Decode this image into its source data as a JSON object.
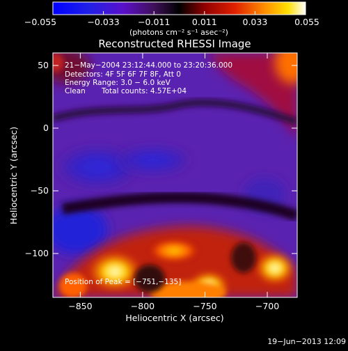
{
  "chart_data": {
    "type": "heatmap",
    "title": "Reconstructed RHESSI Image",
    "xlabel": "Heliocentric X (arcsec)",
    "ylabel": "Heliocentric Y (arcsec)",
    "xlim": [
      -872,
      -676
    ],
    "ylim": [
      -135,
      60
    ],
    "x_ticks": [
      "−850",
      "−800",
      "−750",
      "−700"
    ],
    "x_tick_values": [
      -850,
      -800,
      -750,
      -700
    ],
    "y_ticks": [
      "50",
      "0",
      "−50",
      "−100"
    ],
    "y_tick_values": [
      50,
      0,
      -50,
      -100
    ],
    "colorbar": {
      "range": [
        -0.055,
        0.055
      ],
      "ticks": [
        "−0.055",
        "−0.033",
        "−0.011",
        "0.011",
        "0.033",
        "0.055"
      ],
      "tick_values": [
        -0.055,
        -0.033,
        -0.011,
        0.011,
        0.033,
        0.055
      ],
      "unit_label": "(photons cm⁻² s⁻¹ asec⁻²)"
    },
    "annotations": {
      "time_range": "21−May−2004 23:12:44.000 to 23:20:36.000",
      "detectors": "Detectors: 4F 5F 6F 7F 8F, Att 0",
      "energy": "Energy Range: 3.0 − 6.0 keV",
      "method": "Clean",
      "total_counts": "Total counts: 4.57E+04",
      "peak": "Position of Peak = [−751,−135]"
    },
    "footer_date": "19−Jun−2013 12:09"
  }
}
